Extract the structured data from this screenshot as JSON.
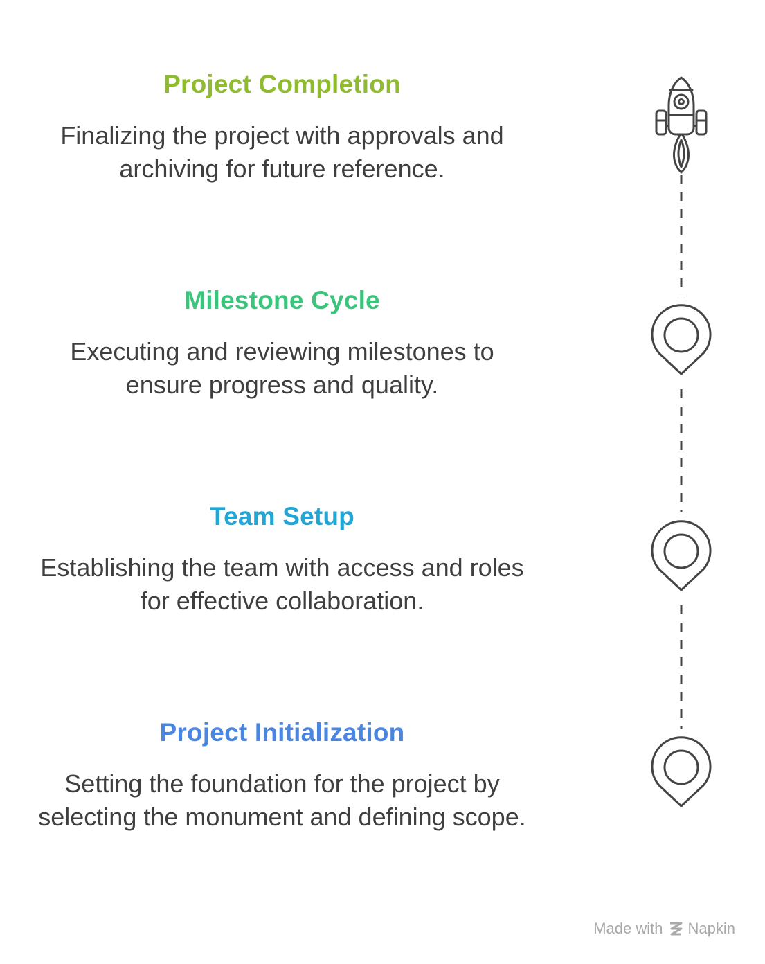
{
  "steps": [
    {
      "title": "Project Completion",
      "description": "Finalizing the project with approvals and archiving for future reference.",
      "color": "#8fbb2e",
      "icon": "rocket-icon"
    },
    {
      "title": "Milestone Cycle",
      "description": "Executing and reviewing milestones to ensure progress and quality.",
      "color": "#3cc47c",
      "icon": "map-pin-icon"
    },
    {
      "title": "Team Setup",
      "description": "Establishing the team with access and roles for effective collaboration.",
      "color": "#22a6d6",
      "icon": "map-pin-icon"
    },
    {
      "title": "Project Initialization",
      "description": "Setting the foundation for the project by selecting the monument and defining scope.",
      "color": "#4a86e0",
      "icon": "map-pin-icon"
    }
  ],
  "footer": {
    "prefix": "Made with",
    "brand": "Napkin",
    "icon": "napkin-logo-icon"
  }
}
